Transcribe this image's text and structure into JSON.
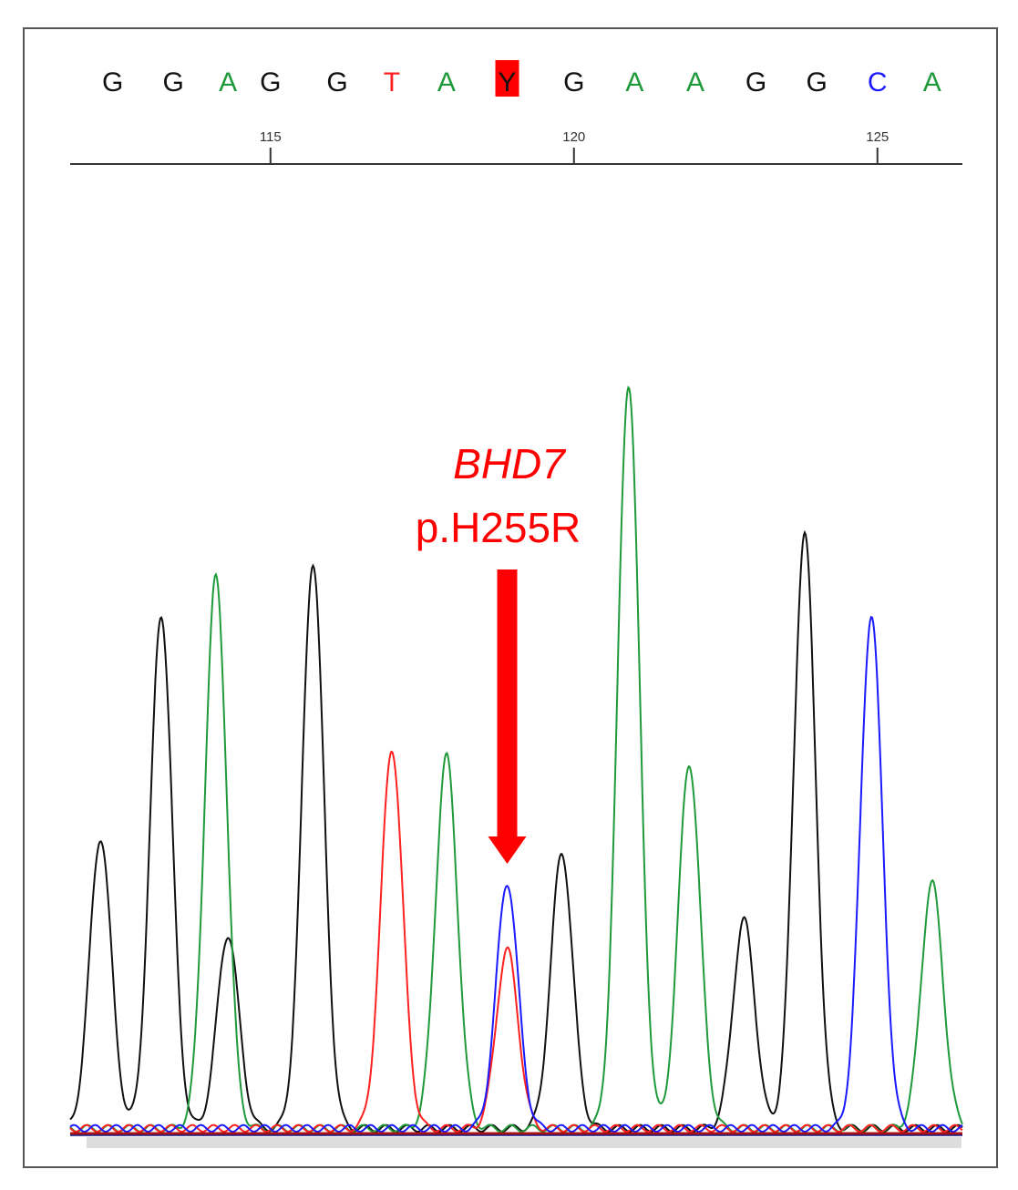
{
  "chart_data": {
    "type": "line",
    "title": "",
    "xlabel": "",
    "ylabel": "",
    "base_calls": [
      {
        "pos": 112.4,
        "base": "G",
        "highlight": false
      },
      {
        "pos": 113.4,
        "base": "G",
        "highlight": false
      },
      {
        "pos": 114.3,
        "base": "A",
        "highlight": false
      },
      {
        "pos": 115.0,
        "base": "G",
        "highlight": false
      },
      {
        "pos": 116.1,
        "base": "G",
        "highlight": false
      },
      {
        "pos": 117.0,
        "base": "T",
        "highlight": false
      },
      {
        "pos": 117.9,
        "base": "A",
        "highlight": false
      },
      {
        "pos": 118.9,
        "base": "Y",
        "highlight": true
      },
      {
        "pos": 120.0,
        "base": "G",
        "highlight": false
      },
      {
        "pos": 121.0,
        "base": "A",
        "highlight": false
      },
      {
        "pos": 122.0,
        "base": "A",
        "highlight": false
      },
      {
        "pos": 123.0,
        "base": "G",
        "highlight": false
      },
      {
        "pos": 124.0,
        "base": "G",
        "highlight": false
      },
      {
        "pos": 125.0,
        "base": "C",
        "highlight": false
      },
      {
        "pos": 125.9,
        "base": "A",
        "highlight": false
      }
    ],
    "ticks": [
      {
        "pos": 115,
        "label": "115"
      },
      {
        "pos": 120,
        "label": "120"
      },
      {
        "pos": 125,
        "label": "125"
      }
    ],
    "xlim": [
      111.7,
      126.4
    ],
    "ylim": [
      0,
      100
    ],
    "series": [
      {
        "name": "G",
        "color": "#111111",
        "peaks": [
          {
            "pos": 112.2,
            "height": 39
          },
          {
            "pos": 113.2,
            "height": 69
          },
          {
            "pos": 114.3,
            "height": 26
          },
          {
            "pos": 115.7,
            "height": 76
          },
          {
            "pos": 119.8,
            "height": 37
          },
          {
            "pos": 122.8,
            "height": 28
          },
          {
            "pos": 123.8,
            "height": 80
          }
        ]
      },
      {
        "name": "A",
        "color": "#1f9a3a",
        "peaks": [
          {
            "pos": 114.1,
            "height": 74
          },
          {
            "pos": 117.9,
            "height": 50
          },
          {
            "pos": 120.9,
            "height": 100
          },
          {
            "pos": 121.9,
            "height": 49
          },
          {
            "pos": 125.9,
            "height": 33
          }
        ]
      },
      {
        "name": "T",
        "color": "#ff2020",
        "peaks": [
          {
            "pos": 117.0,
            "height": 51
          },
          {
            "pos": 118.9,
            "height": 24
          }
        ]
      },
      {
        "name": "C",
        "color": "#1a1aff",
        "peaks": [
          {
            "pos": 118.9,
            "height": 33
          },
          {
            "pos": 124.9,
            "height": 69
          }
        ]
      }
    ],
    "annotation": {
      "gene": "BHD7",
      "variant": "p.H255R",
      "target_pos": 118.9
    }
  },
  "colors": {
    "A": "#1f9a3a",
    "C": "#1a1aff",
    "G": "#111111",
    "T": "#ff2020",
    "Y": "#111111",
    "highlight": "#ff0000",
    "annotation": "#ff0000"
  }
}
